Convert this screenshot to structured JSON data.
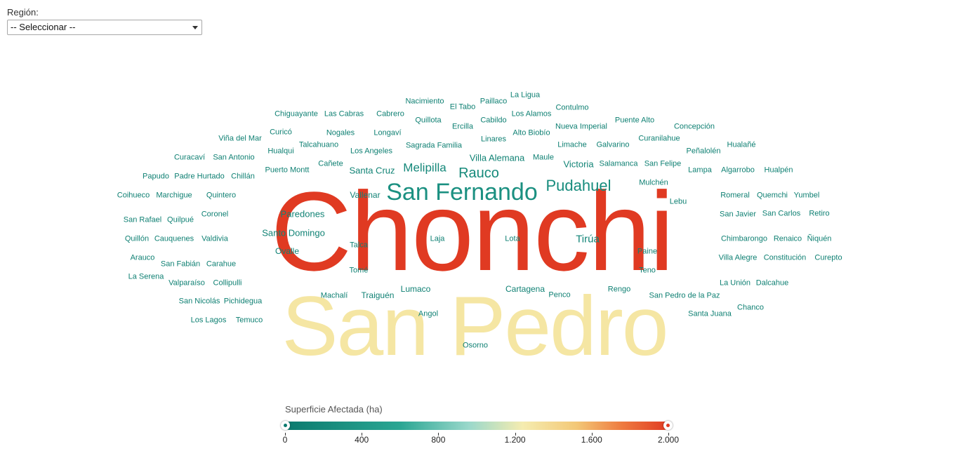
{
  "filter": {
    "label": "Región:",
    "selected": "-- Seleccionar --"
  },
  "colors": {
    "low": "#0b7a6e",
    "mid": "#f5ecb0",
    "high": "#e03a22"
  },
  "chart_data": {
    "type": "wordcloud",
    "value_label": "Superficie Afectada (ha)",
    "range": [
      0,
      2000
    ],
    "legend": {
      "title": "Superficie Afectada (ha)",
      "ticks": [
        "0",
        "400",
        "800",
        "1.200",
        "1.600",
        "2.000"
      ]
    },
    "words": [
      {
        "text": "Chonchi",
        "value": 2000
      },
      {
        "text": "San Pedro",
        "value": 1250
      },
      {
        "text": "San Fernando",
        "value": 300
      },
      {
        "text": "Pudahuel",
        "value": 240
      },
      {
        "text": "Rauco",
        "value": 200
      },
      {
        "text": "Melipilla",
        "value": 190
      },
      {
        "text": "Tirúa",
        "value": 140
      },
      {
        "text": "Victoria",
        "value": 130
      },
      {
        "text": "Santa Cruz",
        "value": 120
      },
      {
        "text": "Villa Alemana",
        "value": 120
      },
      {
        "text": "Paredones",
        "value": 120
      },
      {
        "text": "Santo Domingo",
        "value": 120
      },
      {
        "text": "Cartagena",
        "value": 110
      },
      {
        "text": "Vallenar",
        "value": 110
      },
      {
        "text": "Ovalle",
        "value": 100
      },
      {
        "text": "Lumaco",
        "value": 100
      },
      {
        "text": "Traiguén",
        "value": 100
      },
      {
        "text": "Nacimiento",
        "value": 80
      },
      {
        "text": "El Tabo",
        "value": 80
      },
      {
        "text": "Paillaco",
        "value": 80
      },
      {
        "text": "La Ligua",
        "value": 80
      },
      {
        "text": "Los Alamos",
        "value": 80
      },
      {
        "text": "Contulmo",
        "value": 80
      },
      {
        "text": "Chiguayante",
        "value": 80
      },
      {
        "text": "Las Cabras",
        "value": 80
      },
      {
        "text": "Cabrero",
        "value": 80
      },
      {
        "text": "Quillota",
        "value": 80
      },
      {
        "text": "Cabildo",
        "value": 80
      },
      {
        "text": "Puente Alto",
        "value": 80
      },
      {
        "text": "Ercilla",
        "value": 80
      },
      {
        "text": "Nueva Imperial",
        "value": 80
      },
      {
        "text": "Concepción",
        "value": 80
      },
      {
        "text": "Curicó",
        "value": 80
      },
      {
        "text": "Nogales",
        "value": 80
      },
      {
        "text": "Longaví",
        "value": 80
      },
      {
        "text": "Linares",
        "value": 80
      },
      {
        "text": "Alto Biobío",
        "value": 80
      },
      {
        "text": "Curanilahue",
        "value": 80
      },
      {
        "text": "Viña del Mar",
        "value": 80
      },
      {
        "text": "Talcahuano",
        "value": 80
      },
      {
        "text": "Sagrada Familia",
        "value": 80
      },
      {
        "text": "Limache",
        "value": 80
      },
      {
        "text": "Galvarino",
        "value": 80
      },
      {
        "text": "Hualañé",
        "value": 80
      },
      {
        "text": "Hualqui",
        "value": 80
      },
      {
        "text": "Los Angeles",
        "value": 80
      },
      {
        "text": "Peñalolén",
        "value": 80
      },
      {
        "text": "Curacaví",
        "value": 80
      },
      {
        "text": "San Antonio",
        "value": 80
      },
      {
        "text": "Maule",
        "value": 80
      },
      {
        "text": "Cañete",
        "value": 80
      },
      {
        "text": "Salamanca",
        "value": 80
      },
      {
        "text": "San Felipe",
        "value": 80
      },
      {
        "text": "Puerto Montt",
        "value": 80
      },
      {
        "text": "Lampa",
        "value": 80
      },
      {
        "text": "Algarrobo",
        "value": 80
      },
      {
        "text": "Hualpén",
        "value": 80
      },
      {
        "text": "Papudo",
        "value": 80
      },
      {
        "text": "Padre Hurtado",
        "value": 80
      },
      {
        "text": "Chillán",
        "value": 80
      },
      {
        "text": "Mulchén",
        "value": 80
      },
      {
        "text": "Coihueco",
        "value": 80
      },
      {
        "text": "Marchigue",
        "value": 80
      },
      {
        "text": "Quintero",
        "value": 80
      },
      {
        "text": "Romeral",
        "value": 80
      },
      {
        "text": "Quemchi",
        "value": 80
      },
      {
        "text": "Yumbel",
        "value": 80
      },
      {
        "text": "Lebu",
        "value": 80
      },
      {
        "text": "Coronel",
        "value": 80
      },
      {
        "text": "San Javier",
        "value": 80
      },
      {
        "text": "San Carlos",
        "value": 80
      },
      {
        "text": "Retiro",
        "value": 80
      },
      {
        "text": "San Rafael",
        "value": 80
      },
      {
        "text": "Quilpué",
        "value": 80
      },
      {
        "text": "Laja",
        "value": 80
      },
      {
        "text": "Lota",
        "value": 80
      },
      {
        "text": "Quillón",
        "value": 80
      },
      {
        "text": "Cauquenes",
        "value": 80
      },
      {
        "text": "Valdivia",
        "value": 80
      },
      {
        "text": "Chimbarongo",
        "value": 80
      },
      {
        "text": "Renaico",
        "value": 80
      },
      {
        "text": "Ñiquén",
        "value": 80
      },
      {
        "text": "Talca",
        "value": 80
      },
      {
        "text": "Paine",
        "value": 80
      },
      {
        "text": "Arauco",
        "value": 80
      },
      {
        "text": "Villa Alegre",
        "value": 80
      },
      {
        "text": "Constitución",
        "value": 80
      },
      {
        "text": "Curepto",
        "value": 80
      },
      {
        "text": "San Fabián",
        "value": 80
      },
      {
        "text": "Carahue",
        "value": 80
      },
      {
        "text": "Tomé",
        "value": 80
      },
      {
        "text": "Teno",
        "value": 80
      },
      {
        "text": "La Serena",
        "value": 80
      },
      {
        "text": "Valparaíso",
        "value": 80
      },
      {
        "text": "Collipulli",
        "value": 80
      },
      {
        "text": "La Unión",
        "value": 80
      },
      {
        "text": "Dalcahue",
        "value": 80
      },
      {
        "text": "Rengo",
        "value": 80
      },
      {
        "text": "Machalí",
        "value": 80
      },
      {
        "text": "Penco",
        "value": 80
      },
      {
        "text": "San Pedro de la Paz",
        "value": 80
      },
      {
        "text": "San Nicolás",
        "value": 80
      },
      {
        "text": "Pichidegua",
        "value": 80
      },
      {
        "text": "Chanco",
        "value": 80
      },
      {
        "text": "Angol",
        "value": 80
      },
      {
        "text": "Santa Juana",
        "value": 80
      },
      {
        "text": "Los Lagos",
        "value": 80
      },
      {
        "text": "Temuco",
        "value": 80
      },
      {
        "text": "Osorno",
        "value": 80
      }
    ]
  }
}
